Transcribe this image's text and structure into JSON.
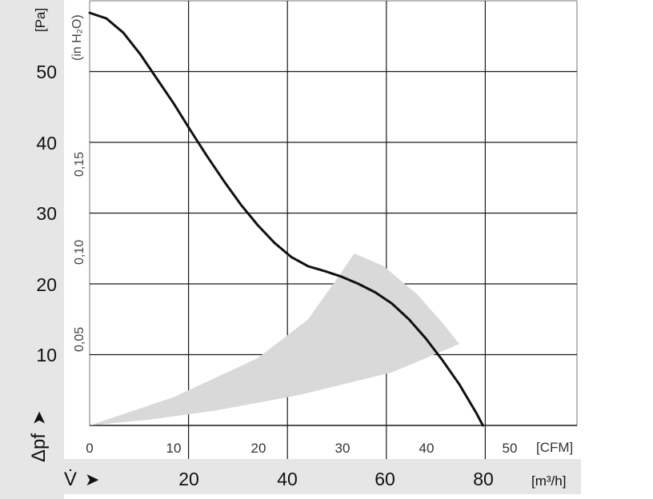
{
  "chart_data": {
    "type": "line",
    "series": [
      {
        "x": [
          0,
          2,
          4,
          6,
          8,
          10,
          12,
          14,
          16,
          18,
          20,
          22,
          24,
          26,
          28,
          30,
          32,
          34,
          36,
          38,
          40,
          42,
          44,
          46,
          46.8
        ],
        "y": [
          58.3,
          57.5,
          55.5,
          52.5,
          49.0,
          45.5,
          41.7,
          38.0,
          34.5,
          31.2,
          28.3,
          25.8,
          23.8,
          22.5,
          21.8,
          21.0,
          20.0,
          18.8,
          17.2,
          15.0,
          12.3,
          9.2,
          5.8,
          1.8,
          0
        ]
      }
    ],
    "operating_range": {
      "upper_edge": [
        [
          0,
          0
        ],
        [
          10,
          4
        ],
        [
          20,
          9.5
        ],
        [
          26,
          15
        ],
        [
          29,
          20
        ],
        [
          31.5,
          24.3
        ]
      ],
      "outer_edge": [
        [
          31.5,
          24.3
        ],
        [
          35,
          22.5
        ],
        [
          39,
          18.5
        ],
        [
          42,
          14.5
        ],
        [
          44,
          11.5
        ]
      ],
      "lower_edge": [
        [
          44,
          11.5
        ],
        [
          36,
          7.5
        ],
        [
          25,
          4.3
        ],
        [
          15,
          2.1
        ],
        [
          7,
          0.8
        ],
        [
          0,
          0
        ]
      ]
    },
    "x_cfm": {
      "ticks": [
        "0",
        "10",
        "20",
        "30",
        "40",
        "50"
      ],
      "unit": "[CFM]",
      "range": [
        0,
        58
      ]
    },
    "x_m3h": {
      "symbol": "V̇",
      "arrow": "➤",
      "ticks": [
        "20",
        "40",
        "60",
        "80"
      ],
      "unit": "[m³/h]"
    },
    "y_pa": {
      "ticks": [
        "10",
        "20",
        "30",
        "40",
        "50"
      ],
      "unit": "[Pa]",
      "symbol": "Δpf",
      "arrow": "➤",
      "range": [
        0,
        60
      ]
    },
    "y_inh2o": {
      "ticks": [
        "0,05",
        "0,10",
        "0,15"
      ],
      "unit": "(in H₂O)"
    },
    "grid": true,
    "colors": {
      "curve": "#111111",
      "band": "#d9d9d9",
      "grid": "#1a1a1a",
      "frame": "#777777",
      "axis_strip": "#e6e6e6"
    }
  }
}
